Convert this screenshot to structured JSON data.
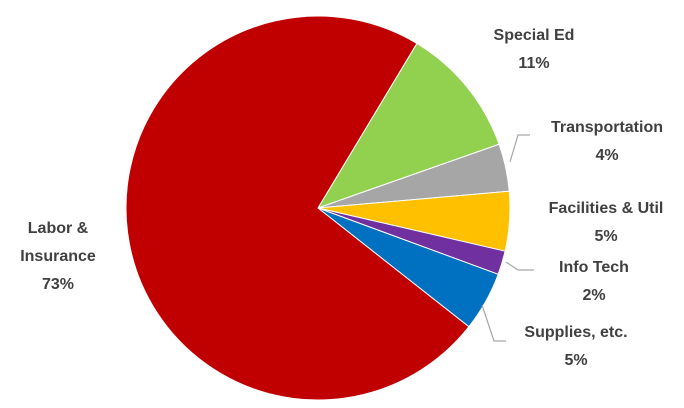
{
  "chart_data": {
    "type": "pie",
    "title": "",
    "labels": [
      "Special Ed",
      "Transportation",
      "Facilities & Util",
      "Info Tech",
      "Supplies, etc.",
      "Labor & Insurance"
    ],
    "values": [
      11,
      4,
      5,
      2,
      5,
      73
    ],
    "value_labels": [
      "11%",
      "4%",
      "5%",
      "2%",
      "5%",
      "73%"
    ],
    "colors": [
      "#92d050",
      "#a6a6a6",
      "#ffc000",
      "#7030a0",
      "#0070c0",
      "#c00000"
    ],
    "start_angle_deg": 31,
    "direction": "clockwise",
    "legend": "none"
  }
}
